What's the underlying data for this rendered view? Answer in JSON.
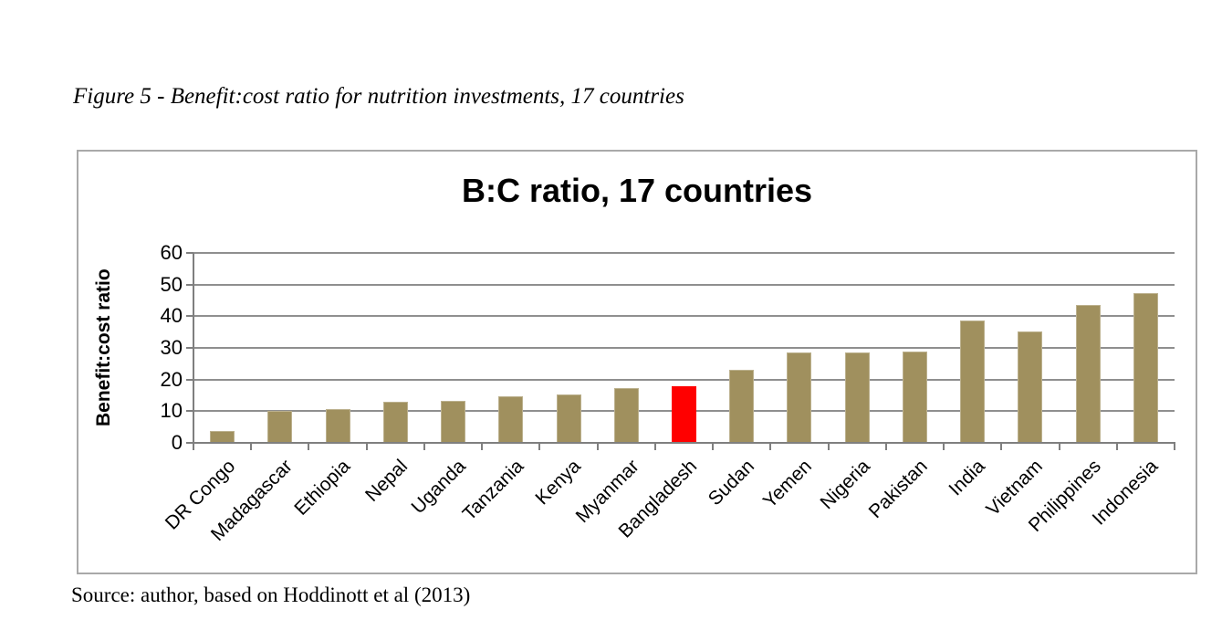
{
  "figure": {
    "caption": "Figure 5 - Benefit:cost ratio for nutrition investments, 17 countries",
    "source_note": "Source: author, based on Hoddinott et al (2013)"
  },
  "chart_data": {
    "type": "bar",
    "title": "B:C ratio, 17 countries",
    "xlabel": "",
    "ylabel": "Benefit:cost ratio",
    "ylim": [
      0,
      60
    ],
    "yticks": [
      0,
      10,
      20,
      30,
      40,
      50,
      60
    ],
    "grid": true,
    "legend": false,
    "categories": [
      "DR Congo",
      "Madagascar",
      "Ethiopia",
      "Nepal",
      "Uganda",
      "Tanzania",
      "Kenya",
      "Myanmar",
      "Bangladesh",
      "Sudan",
      "Yemen",
      "Nigeria",
      "Pakistan",
      "India",
      "Vietnam",
      "Philippines",
      "Indonesia"
    ],
    "values": [
      3.8,
      10.0,
      10.8,
      13.0,
      13.2,
      14.8,
      15.2,
      17.2,
      17.8,
      23.0,
      28.6,
      28.5,
      28.9,
      38.6,
      35.3,
      43.5,
      47.3
    ],
    "bar_color": "#A0905E",
    "highlight_category": "Bangladesh",
    "highlight_color": "#FF0000",
    "colors": {
      "gridline": "#8F8F8F",
      "axis": "#7F7F7F",
      "frame_border": "#A9A9A9",
      "text": "#000000"
    }
  }
}
